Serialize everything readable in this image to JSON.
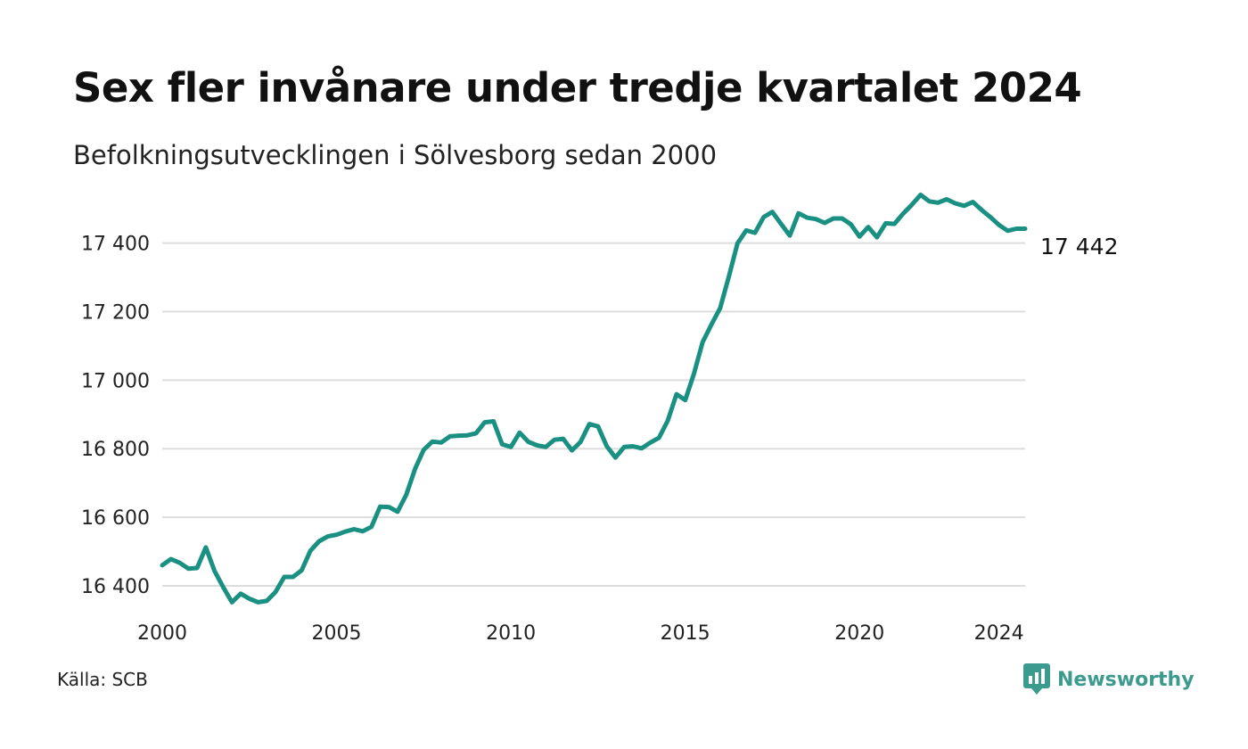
{
  "title": "Sex fler invånare under tredje kvartalet 2024",
  "subtitle": "Befolkningsutvecklingen i Sölvesborg sedan 2000",
  "source": "Källa: SCB",
  "brand": {
    "name": "Newsworthy",
    "icon": "newsworthy-logo-icon",
    "color": "#3d9a8f"
  },
  "chart_data": {
    "type": "line",
    "line_color": "#1a9082",
    "grid": true,
    "x_ticks": [
      2000,
      2005,
      2010,
      2015,
      2020,
      2024
    ],
    "x_tick_labels": [
      "2000",
      "2005",
      "2010",
      "2015",
      "2020",
      "2024"
    ],
    "y_ticks": [
      16400,
      16600,
      16800,
      17000,
      17200,
      17400
    ],
    "y_tick_labels": [
      "16 400",
      "16 600",
      "16 800",
      "17 000",
      "17 200",
      "17 400"
    ],
    "xlim": [
      2000,
      2024.75
    ],
    "ylim": [
      16340,
      17550
    ],
    "end_label": "17 442",
    "series": [
      {
        "x": [
          2000.0,
          2000.25,
          2000.5,
          2000.75,
          2001.0,
          2001.25,
          2001.5,
          2001.75,
          2002.0,
          2002.25,
          2002.5,
          2002.75,
          2003.0,
          2003.25,
          2003.5,
          2003.75,
          2004.0,
          2004.25,
          2004.5,
          2004.75,
          2005.0,
          2005.25,
          2005.5,
          2005.75,
          2006.0,
          2006.25,
          2006.5,
          2006.75,
          2007.0,
          2007.25,
          2007.5,
          2007.75,
          2008.0,
          2008.25,
          2008.5,
          2008.75,
          2009.0,
          2009.25,
          2009.5,
          2009.75,
          2010.0,
          2010.25,
          2010.5,
          2010.75,
          2011.0,
          2011.25,
          2011.5,
          2011.75,
          2012.0,
          2012.25,
          2012.5,
          2012.75,
          2013.0,
          2013.25,
          2013.5,
          2013.75,
          2014.0,
          2014.25,
          2014.5,
          2014.75,
          2015.0,
          2015.25,
          2015.5,
          2015.75,
          2016.0,
          2016.25,
          2016.5,
          2016.75,
          2017.0,
          2017.25,
          2017.5,
          2017.75,
          2018.0,
          2018.25,
          2018.5,
          2018.75,
          2019.0,
          2019.25,
          2019.5,
          2019.75,
          2020.0,
          2020.25,
          2020.5,
          2020.75,
          2021.0,
          2021.25,
          2021.5,
          2021.75,
          2022.0,
          2022.25,
          2022.5,
          2022.75,
          2023.0,
          2023.25,
          2023.5,
          2023.75,
          2024.0,
          2024.25,
          2024.5,
          2024.75
        ],
        "values": [
          16460,
          16478,
          16467,
          16450,
          16452,
          16512,
          16443,
          16396,
          16352,
          16377,
          16362,
          16352,
          16356,
          16382,
          16426,
          16426,
          16445,
          16502,
          16530,
          16544,
          16549,
          16558,
          16565,
          16559,
          16572,
          16631,
          16630,
          16616,
          16666,
          16741,
          16797,
          16821,
          16818,
          16836,
          16838,
          16839,
          16845,
          16877,
          16880,
          16813,
          16805,
          16847,
          16820,
          16810,
          16805,
          16826,
          16829,
          16795,
          16820,
          16872,
          16865,
          16807,
          16774,
          16805,
          16807,
          16801,
          16818,
          16832,
          16882,
          16959,
          16942,
          17018,
          17111,
          17162,
          17210,
          17302,
          17399,
          17437,
          17430,
          17476,
          17491,
          17456,
          17422,
          17487,
          17474,
          17470,
          17459,
          17472,
          17472,
          17455,
          17419,
          17447,
          17417,
          17458,
          17456,
          17486,
          17512,
          17541,
          17522,
          17518,
          17528,
          17516,
          17509,
          17520,
          17497,
          17476,
          17453,
          17436,
          17442,
          17442
        ]
      }
    ]
  }
}
